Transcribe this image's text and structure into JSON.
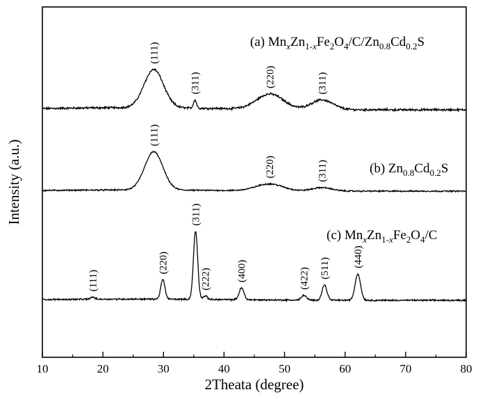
{
  "chart_data": {
    "type": "line",
    "xlabel": "2Theata (degree)",
    "ylabel": "Intensity (a.u.)",
    "xlim": [
      10,
      80
    ],
    "x_ticks": [
      "10",
      "20",
      "30",
      "40",
      "50",
      "60",
      "70",
      "80"
    ],
    "y_ticks_labeled": false,
    "grid": false,
    "legend": "none",
    "line_color": "#000000",
    "series": [
      {
        "label_parts": [
          {
            "t": "(a) Mn"
          },
          {
            "t": "x",
            "sub": true,
            "italic": true
          },
          {
            "t": "Zn"
          },
          {
            "t": "1-",
            "sub": true
          },
          {
            "t": "x",
            "sub": true,
            "italic": true
          },
          {
            "t": "Fe"
          },
          {
            "t": "2",
            "sub": true
          },
          {
            "t": "O"
          },
          {
            "t": "4",
            "sub": true
          },
          {
            "t": "/C/Zn"
          },
          {
            "t": "0.8",
            "sub": true
          },
          {
            "t": "Cd"
          },
          {
            "t": "0.2",
            "sub": true
          },
          {
            "t": "S"
          }
        ],
        "baseline": 0.09,
        "noise": 0.012,
        "peaks": [
          {
            "x": 28.4,
            "h": 0.55,
            "w": 1.6,
            "label": "(111)"
          },
          {
            "x": 35.2,
            "h": 0.12,
            "w": 0.25,
            "label": "(311)"
          },
          {
            "x": 47.6,
            "h": 0.22,
            "w": 2.2,
            "label": "(220)"
          },
          {
            "x": 56.2,
            "h": 0.14,
            "w": 1.8,
            "label": "(311)"
          }
        ]
      },
      {
        "label_parts": [
          {
            "t": "(b) Zn"
          },
          {
            "t": "0.8",
            "sub": true
          },
          {
            "t": "Cd"
          },
          {
            "t": "0.2",
            "sub": true
          },
          {
            "t": "S"
          }
        ],
        "baseline": 0.05,
        "noise": 0.008,
        "peaks": [
          {
            "x": 28.4,
            "h": 0.55,
            "w": 1.5,
            "label": "(111)"
          },
          {
            "x": 47.5,
            "h": 0.1,
            "w": 2.2,
            "label": "(220)"
          },
          {
            "x": 56.2,
            "h": 0.05,
            "w": 1.6,
            "label": "(311)"
          }
        ]
      },
      {
        "label_parts": [
          {
            "t": "(c) Mn"
          },
          {
            "t": "x",
            "sub": true,
            "italic": true
          },
          {
            "t": "Zn"
          },
          {
            "t": "1-",
            "sub": true
          },
          {
            "t": "x",
            "sub": true,
            "italic": true
          },
          {
            "t": "Fe"
          },
          {
            "t": "2",
            "sub": true
          },
          {
            "t": "O"
          },
          {
            "t": "4",
            "sub": true
          },
          {
            "t": "/C"
          }
        ],
        "baseline": 0.05,
        "noise": 0.009,
        "peaks": [
          {
            "x": 18.3,
            "h": 0.03,
            "w": 0.35,
            "label": "(111)"
          },
          {
            "x": 29.9,
            "h": 0.28,
            "w": 0.35,
            "label": "(220)"
          },
          {
            "x": 35.3,
            "h": 0.98,
            "w": 0.35,
            "label": "(311)"
          },
          {
            "x": 36.9,
            "h": 0.05,
            "w": 0.35,
            "label": "(222)"
          },
          {
            "x": 42.9,
            "h": 0.17,
            "w": 0.4,
            "label": "(400)"
          },
          {
            "x": 53.2,
            "h": 0.07,
            "w": 0.4,
            "label": "(422)"
          },
          {
            "x": 56.6,
            "h": 0.22,
            "w": 0.4,
            "label": "(511)"
          },
          {
            "x": 62.1,
            "h": 0.38,
            "w": 0.45,
            "label": "(440)"
          }
        ]
      }
    ]
  }
}
